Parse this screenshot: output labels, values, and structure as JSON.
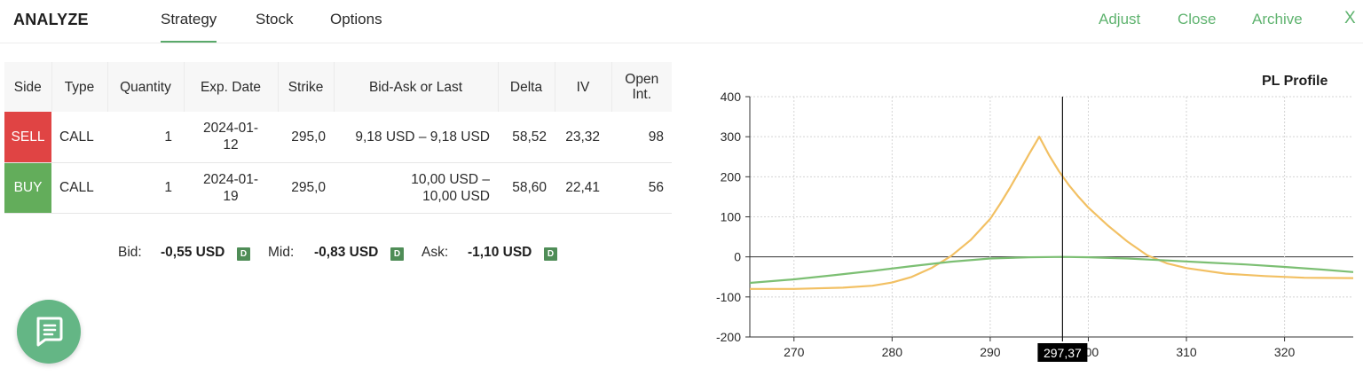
{
  "header": {
    "brand": "ANALYZE",
    "tabs": [
      {
        "label": "Strategy",
        "active": true
      },
      {
        "label": "Stock",
        "active": false
      },
      {
        "label": "Options",
        "active": false
      }
    ],
    "actions": {
      "adjust": "Adjust",
      "close": "Close",
      "archive": "Archive",
      "close_icon": "X"
    }
  },
  "table": {
    "columns": {
      "side": "Side",
      "type": "Type",
      "quantity": "Quantity",
      "exp_date": "Exp. Date",
      "strike": "Strike",
      "bid_ask": "Bid-Ask or Last",
      "delta": "Delta",
      "iv": "IV",
      "open_int_1": "Open",
      "open_int_2": "Int."
    },
    "rows": [
      {
        "side": "SELL",
        "type": "CALL",
        "quantity": "1",
        "exp_1": "2024-01-",
        "exp_2": "12",
        "strike": "295,0",
        "bidask_1": "9,18 USD – 9,18 USD",
        "bidask_2": "",
        "delta": "58,52",
        "iv": "23,32",
        "open_int": "98"
      },
      {
        "side": "BUY",
        "type": "CALL",
        "quantity": "1",
        "exp_1": "2024-01-",
        "exp_2": "19",
        "strike": "295,0",
        "bidask_1": "10,00 USD –",
        "bidask_2": "10,00 USD",
        "delta": "58,60",
        "iv": "22,41",
        "open_int": "56"
      }
    ]
  },
  "summary": {
    "bid_label": "Bid:",
    "bid_value": "-0,55 USD",
    "mid_label": "Mid:",
    "mid_value": "-0,83 USD",
    "ask_label": "Ask:",
    "ask_value": "-1,10 USD",
    "badge": "D"
  },
  "chat": {
    "icon": "chat-icon"
  },
  "chart_data": {
    "type": "line",
    "title": "PL Profile",
    "xlabel": "",
    "ylabel": "",
    "xlim": [
      265.5,
      327
    ],
    "ylim": [
      -200,
      400
    ],
    "x_ticks": [
      270,
      280,
      290,
      300,
      310,
      320
    ],
    "y_ticks": [
      400,
      300,
      200,
      100,
      0,
      -100,
      -200
    ],
    "grid": true,
    "current_price": 297.37,
    "current_price_label": "297,37",
    "series": [
      {
        "color": "#f2c063",
        "x": [
          265.5,
          270,
          275,
          278,
          280,
          282,
          284,
          286,
          288,
          290,
          291,
          292,
          293,
          294,
          295,
          296,
          297,
          298,
          299,
          300,
          302,
          304,
          306,
          308,
          310,
          314,
          318,
          322,
          327
        ],
        "y": [
          -80,
          -80,
          -77,
          -72,
          -64,
          -50,
          -28,
          2,
          42,
          95,
          132,
          172,
          215,
          258,
          300,
          254,
          214,
          180,
          150,
          123,
          78,
          38,
          4,
          -16,
          -28,
          -42,
          -48,
          -52,
          -53
        ]
      },
      {
        "color": "#7cbf73",
        "x": [
          265.5,
          270,
          274,
          278,
          282,
          286,
          290,
          294,
          297.37,
          300,
          304,
          308,
          312,
          316,
          320,
          324,
          327
        ],
        "y": [
          -65,
          -56,
          -46,
          -35,
          -23,
          -12,
          -4,
          -1,
          0,
          -1,
          -4,
          -9,
          -14,
          -19,
          -25,
          -32,
          -38
        ]
      }
    ]
  }
}
